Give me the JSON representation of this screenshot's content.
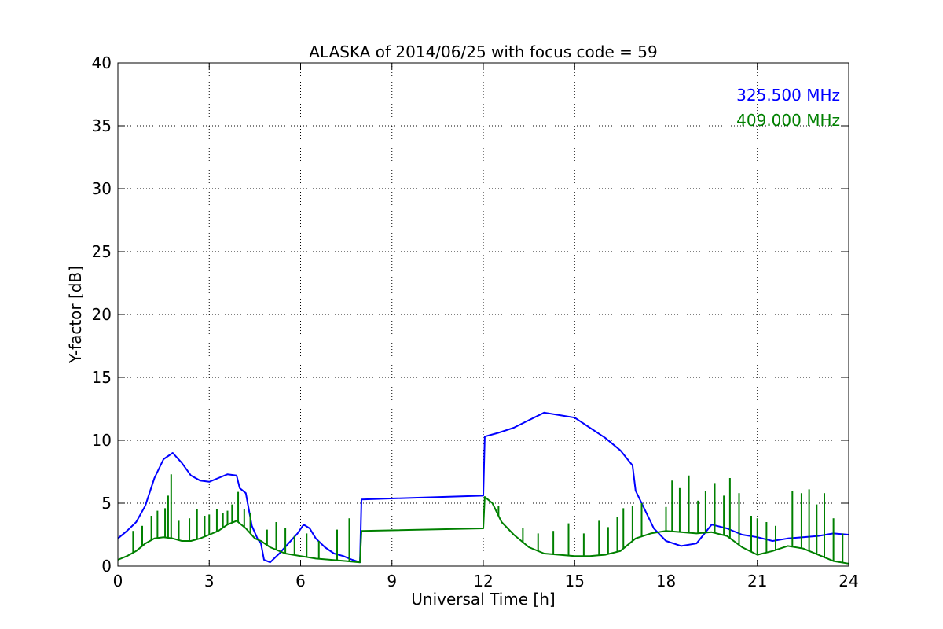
{
  "chart_data": {
    "type": "line",
    "title": "ALASKA of 2014/06/25 with focus code = 59",
    "xlabel": "Universal Time [h]",
    "ylabel": "Y-factor [dB]",
    "xlim": [
      0,
      24
    ],
    "ylim": [
      0,
      40
    ],
    "xticks": [
      0,
      3,
      6,
      9,
      12,
      15,
      18,
      21,
      24
    ],
    "yticks": [
      0,
      5,
      10,
      15,
      20,
      25,
      30,
      35,
      40
    ],
    "grid": true,
    "legend_position": "top-right",
    "series": [
      {
        "name": "325.500 MHz",
        "color": "#0000ff",
        "x": [
          0,
          0.3,
          0.6,
          0.9,
          1.2,
          1.5,
          1.8,
          2.1,
          2.4,
          2.7,
          3.0,
          3.3,
          3.6,
          3.9,
          4.0,
          4.2,
          4.4,
          4.6,
          4.7,
          4.8,
          5.0,
          5.3,
          5.6,
          5.9,
          6.1,
          6.3,
          6.5,
          6.8,
          7.1,
          7.4,
          7.7,
          7.95,
          8.0,
          12.0,
          12.05,
          12.5,
          13.0,
          13.5,
          14.0,
          14.5,
          15.0,
          15.5,
          16.0,
          16.5,
          16.9,
          17.0,
          17.3,
          17.6,
          18.0,
          18.5,
          19.0,
          19.5,
          20.0,
          20.5,
          21.0,
          21.5,
          22.0,
          22.5,
          23.0,
          23.5,
          24.0
        ],
        "y": [
          2.2,
          2.8,
          3.5,
          4.8,
          7.0,
          8.5,
          9.0,
          8.2,
          7.2,
          6.8,
          6.7,
          7.0,
          7.3,
          7.2,
          6.2,
          5.8,
          3.2,
          2.1,
          1.8,
          0.5,
          0.3,
          1.0,
          1.8,
          2.6,
          3.3,
          3.0,
          2.2,
          1.5,
          1.0,
          0.8,
          0.5,
          0.3,
          5.3,
          5.6,
          10.3,
          10.6,
          11.0,
          11.6,
          12.2,
          12.0,
          11.8,
          11.0,
          10.2,
          9.2,
          8.0,
          6.0,
          4.5,
          3.0,
          2.0,
          1.6,
          1.8,
          3.3,
          3.0,
          2.5,
          2.3,
          2.0,
          2.2,
          2.3,
          2.4,
          2.6,
          2.5
        ]
      },
      {
        "name": "409.000 MHz",
        "color": "#008000",
        "x": [
          0,
          0.3,
          0.6,
          0.9,
          1.2,
          1.5,
          1.8,
          2.1,
          2.4,
          2.7,
          3.0,
          3.3,
          3.6,
          3.9,
          4.2,
          4.5,
          4.7,
          5.0,
          5.5,
          6.0,
          6.5,
          7.0,
          7.5,
          7.95,
          8.0,
          12.0,
          12.05,
          12.3,
          12.6,
          13.0,
          13.5,
          14.0,
          14.5,
          15.0,
          15.5,
          16.0,
          16.5,
          17.0,
          17.5,
          18.0,
          18.5,
          19.0,
          19.5,
          20.0,
          20.5,
          21.0,
          21.5,
          22.0,
          22.5,
          23.0,
          23.5,
          24.0
        ],
        "y": [
          0.5,
          0.8,
          1.2,
          1.8,
          2.2,
          2.3,
          2.2,
          2.0,
          2.0,
          2.2,
          2.5,
          2.8,
          3.3,
          3.6,
          3.0,
          2.2,
          2.0,
          1.5,
          1.0,
          0.8,
          0.6,
          0.5,
          0.4,
          0.3,
          2.8,
          3.0,
          5.5,
          5.0,
          3.5,
          2.5,
          1.5,
          1.0,
          0.9,
          0.8,
          0.8,
          0.9,
          1.2,
          2.2,
          2.6,
          2.8,
          2.7,
          2.6,
          2.7,
          2.4,
          1.5,
          0.9,
          1.2,
          1.6,
          1.4,
          0.9,
          0.4,
          0.2
        ],
        "spikes": [
          {
            "x": 0.5,
            "y": 2.8
          },
          {
            "x": 0.8,
            "y": 3.2
          },
          {
            "x": 1.1,
            "y": 4.0
          },
          {
            "x": 1.3,
            "y": 4.4
          },
          {
            "x": 1.55,
            "y": 4.6
          },
          {
            "x": 1.65,
            "y": 5.6
          },
          {
            "x": 1.75,
            "y": 7.3
          },
          {
            "x": 2.0,
            "y": 3.6
          },
          {
            "x": 2.35,
            "y": 3.8
          },
          {
            "x": 2.6,
            "y": 4.5
          },
          {
            "x": 2.85,
            "y": 4.0
          },
          {
            "x": 3.0,
            "y": 4.1
          },
          {
            "x": 3.25,
            "y": 4.5
          },
          {
            "x": 3.45,
            "y": 4.2
          },
          {
            "x": 3.6,
            "y": 4.4
          },
          {
            "x": 3.75,
            "y": 4.9
          },
          {
            "x": 3.95,
            "y": 5.9
          },
          {
            "x": 4.15,
            "y": 4.5
          },
          {
            "x": 4.35,
            "y": 4.2
          },
          {
            "x": 4.9,
            "y": 2.9
          },
          {
            "x": 5.2,
            "y": 3.5
          },
          {
            "x": 5.5,
            "y": 3.0
          },
          {
            "x": 5.8,
            "y": 2.4
          },
          {
            "x": 6.2,
            "y": 2.6
          },
          {
            "x": 6.6,
            "y": 2.0
          },
          {
            "x": 7.2,
            "y": 2.9
          },
          {
            "x": 7.6,
            "y": 3.8
          },
          {
            "x": 12.5,
            "y": 4.8
          },
          {
            "x": 13.3,
            "y": 3.0
          },
          {
            "x": 13.8,
            "y": 2.6
          },
          {
            "x": 14.3,
            "y": 2.8
          },
          {
            "x": 14.8,
            "y": 3.4
          },
          {
            "x": 15.3,
            "y": 2.6
          },
          {
            "x": 15.8,
            "y": 3.6
          },
          {
            "x": 16.1,
            "y": 3.1
          },
          {
            "x": 16.4,
            "y": 3.9
          },
          {
            "x": 16.6,
            "y": 4.6
          },
          {
            "x": 16.9,
            "y": 4.8
          },
          {
            "x": 17.2,
            "y": 5.0
          },
          {
            "x": 18.0,
            "y": 4.7
          },
          {
            "x": 18.2,
            "y": 6.8
          },
          {
            "x": 18.45,
            "y": 6.2
          },
          {
            "x": 18.75,
            "y": 7.2
          },
          {
            "x": 19.05,
            "y": 5.2
          },
          {
            "x": 19.3,
            "y": 6.0
          },
          {
            "x": 19.6,
            "y": 6.6
          },
          {
            "x": 19.9,
            "y": 5.6
          },
          {
            "x": 20.1,
            "y": 7.0
          },
          {
            "x": 20.4,
            "y": 5.8
          },
          {
            "x": 20.8,
            "y": 4.0
          },
          {
            "x": 21.0,
            "y": 3.8
          },
          {
            "x": 21.3,
            "y": 3.5
          },
          {
            "x": 21.6,
            "y": 3.2
          },
          {
            "x": 22.15,
            "y": 6.0
          },
          {
            "x": 22.45,
            "y": 5.8
          },
          {
            "x": 22.7,
            "y": 6.1
          },
          {
            "x": 22.95,
            "y": 4.9
          },
          {
            "x": 23.2,
            "y": 5.8
          },
          {
            "x": 23.5,
            "y": 3.8
          },
          {
            "x": 23.8,
            "y": 2.6
          }
        ]
      }
    ]
  }
}
